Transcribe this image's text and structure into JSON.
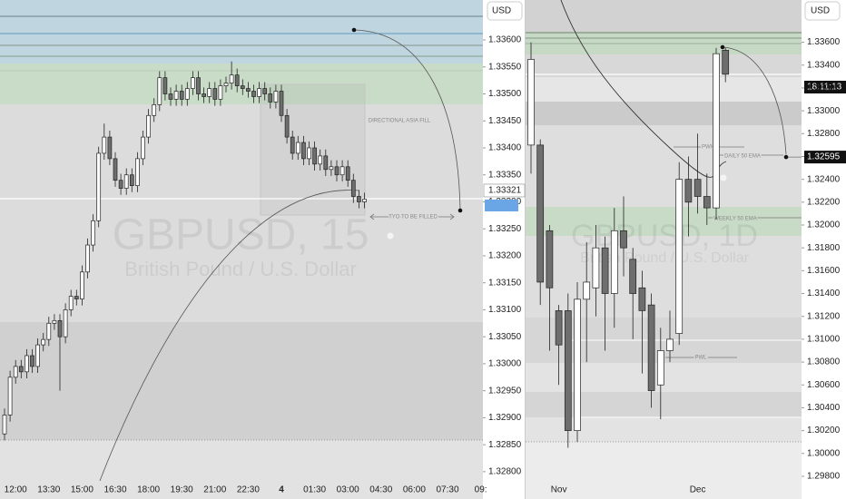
{
  "chart_data": [
    {
      "type": "candlestick",
      "currency": "USD",
      "title": "GBPUSD, 15",
      "subtitle": "British Pound / U.S. Dollar",
      "categories": [
        null,
        null,
        "12:00",
        null,
        null,
        null,
        null,
        null,
        "13:30",
        null,
        null,
        null,
        null,
        null,
        "15:00",
        null,
        null,
        null,
        null,
        null,
        "16:30",
        null,
        null,
        null,
        null,
        null,
        "18:00",
        null,
        null,
        null,
        null,
        null,
        "19:30",
        null,
        null,
        null,
        null,
        null,
        "21:00",
        null,
        null,
        null,
        null,
        null,
        "22:30",
        null,
        null,
        null,
        null,
        null,
        "4",
        null,
        null,
        null,
        null,
        null,
        "01:30",
        null,
        null,
        null,
        null,
        null,
        "03:00",
        null,
        null,
        null,
        null,
        null,
        "04:30",
        null,
        null,
        null,
        null,
        null,
        "06:00",
        null,
        null,
        null,
        null,
        null,
        "07:30",
        null,
        null,
        null,
        null,
        null,
        "09:"
      ],
      "open": [
        1.3287,
        1.32905,
        1.32975,
        1.32995,
        1.32985,
        1.33015,
        1.32995,
        1.33035,
        1.33045,
        1.33075,
        1.3308,
        1.3305,
        1.331,
        1.33125,
        1.3312,
        1.3317,
        1.3322,
        1.33265,
        1.3339,
        1.3342,
        1.3338,
        1.3334,
        1.33325,
        1.3335,
        1.3333,
        1.3338,
        1.3342,
        1.3346,
        1.3348,
        1.3353,
        1.335,
        1.3349,
        1.33505,
        1.3349,
        1.3351,
        1.3353,
        1.335,
        1.33495,
        1.3351,
        1.3349,
        1.33515,
        1.3352,
        1.33535,
        1.33515,
        1.3351,
        1.33505,
        1.33495,
        1.3351,
        1.335,
        1.33485,
        1.33505,
        1.3346,
        1.3342,
        1.3339,
        1.3341,
        1.3338,
        1.334,
        1.3337,
        1.33385,
        1.3336,
        1.33365,
        1.3335,
        1.33365,
        1.3334,
        1.3331,
        1.333,
        null,
        null,
        null,
        null,
        null,
        null,
        null,
        null,
        null,
        null,
        null,
        null,
        null,
        null,
        null,
        null,
        null,
        null,
        null,
        null,
        null
      ],
      "high": [
        1.32917,
        1.32987,
        1.33007,
        1.33007,
        1.33027,
        1.33027,
        1.33047,
        1.33057,
        1.33087,
        1.33092,
        1.33092,
        1.33112,
        1.33137,
        1.33137,
        1.33182,
        1.33232,
        1.33277,
        1.33402,
        1.33445,
        1.33432,
        1.33392,
        1.33352,
        1.33362,
        1.33362,
        1.33392,
        1.33432,
        1.33472,
        1.33492,
        1.33542,
        1.33542,
        1.33512,
        1.33517,
        1.33517,
        1.33522,
        1.33542,
        1.33542,
        1.33512,
        1.33522,
        1.33522,
        1.33527,
        1.33532,
        1.3356,
        1.33547,
        1.33527,
        1.33522,
        1.33517,
        1.33522,
        1.33522,
        1.33512,
        1.33517,
        1.33517,
        1.33472,
        1.33432,
        1.33422,
        1.33422,
        1.33412,
        1.33412,
        1.33397,
        1.33397,
        1.33377,
        1.33377,
        1.33377,
        1.33377,
        1.33352,
        1.33322,
        1.33317,
        null,
        null,
        null,
        null,
        null,
        null,
        null,
        null,
        null,
        null,
        null,
        null,
        null,
        null,
        null,
        null,
        null,
        null,
        null,
        null,
        null
      ],
      "low": [
        1.32858,
        1.32893,
        1.32963,
        1.32973,
        1.32973,
        1.32983,
        1.32983,
        1.33023,
        1.33033,
        1.33063,
        1.3295,
        1.33038,
        1.33088,
        1.33108,
        1.33108,
        1.33158,
        1.33208,
        1.33253,
        1.33378,
        1.33368,
        1.33328,
        1.33313,
        1.33313,
        1.33318,
        1.33318,
        1.33368,
        1.33408,
        1.33448,
        1.33468,
        1.33488,
        1.33478,
        1.33478,
        1.33478,
        1.33478,
        1.33498,
        1.33488,
        1.33483,
        1.33483,
        1.33478,
        1.33478,
        1.33503,
        1.33508,
        1.33503,
        1.33498,
        1.33493,
        1.33483,
        1.33483,
        1.33488,
        1.33473,
        1.33473,
        1.33448,
        1.33408,
        1.33378,
        1.33378,
        1.33368,
        1.33368,
        1.33358,
        1.33358,
        1.33348,
        1.33348,
        1.33338,
        1.33338,
        1.33328,
        1.33298,
        1.33288,
        1.33288,
        null,
        null,
        null,
        null,
        null,
        null,
        null,
        null,
        null,
        null,
        null,
        null,
        null,
        null,
        null,
        null,
        null,
        null,
        null,
        null,
        null
      ],
      "close": [
        1.32905,
        1.32975,
        1.32995,
        1.32985,
        1.33015,
        1.32995,
        1.33035,
        1.33045,
        1.33075,
        1.3308,
        1.3305,
        1.331,
        1.33125,
        1.3312,
        1.3317,
        1.3322,
        1.33265,
        1.3339,
        1.3342,
        1.3338,
        1.3334,
        1.33325,
        1.3335,
        1.3333,
        1.3338,
        1.3342,
        1.3346,
        1.3348,
        1.3353,
        1.335,
        1.3349,
        1.33505,
        1.3349,
        1.3351,
        1.3353,
        1.335,
        1.33495,
        1.3351,
        1.3349,
        1.33515,
        1.3352,
        1.33535,
        1.33515,
        1.3351,
        1.33505,
        1.33495,
        1.3351,
        1.335,
        1.33485,
        1.33505,
        1.3346,
        1.3342,
        1.3339,
        1.3341,
        1.3338,
        1.334,
        1.3337,
        1.33385,
        1.3336,
        1.33365,
        1.3335,
        1.33365,
        1.3334,
        1.3331,
        1.333,
        1.33305,
        null,
        null,
        null,
        null,
        null,
        null,
        null,
        null,
        null,
        null,
        null,
        null,
        null,
        null,
        null,
        null,
        null,
        null,
        null,
        null,
        null
      ],
      "up_color": "#ffffff",
      "down_color": "#6e6e6e",
      "ylim": [
        1.32783,
        1.33674
      ],
      "yticks": [
        {
          "value": 1.336,
          "label": "1.33600"
        },
        {
          "value": 1.3355,
          "label": "1.33550"
        },
        {
          "value": 1.335,
          "label": "1.33500"
        },
        {
          "value": 1.3345,
          "label": "1.33450"
        },
        {
          "value": 1.334,
          "label": "1.33400"
        },
        {
          "value": 1.3335,
          "label": "1.33350"
        },
        {
          "value": 1.333,
          "label": "1.33300"
        },
        {
          "value": 1.3325,
          "label": "1.33250"
        },
        {
          "value": 1.332,
          "label": "1.33200"
        },
        {
          "value": 1.3315,
          "label": "1.33150"
        },
        {
          "value": 1.331,
          "label": "1.33100"
        },
        {
          "value": 1.3305,
          "label": "1.33050"
        },
        {
          "value": 1.33,
          "label": "1.33000"
        },
        {
          "value": 1.3295,
          "label": "1.32950"
        },
        {
          "value": 1.329,
          "label": "1.32900"
        },
        {
          "value": 1.3285,
          "label": "1.32850"
        },
        {
          "value": 1.328,
          "label": "1.32800"
        }
      ],
      "last_price": 1.33321,
      "annotations": [
        "DIRECTIONAL ASIA FILL",
        "TYO TO BE FILLED"
      ]
    },
    {
      "type": "candlestick",
      "currency": "USD",
      "title": "GBPUSD, 1D",
      "subtitle": "British Pound / U.S. Dollar",
      "categories": [
        null,
        null,
        null,
        "Nov",
        null,
        null,
        null,
        null,
        null,
        null,
        null,
        null,
        null,
        null,
        null,
        null,
        null,
        null,
        "Dec",
        null,
        null,
        null,
        null,
        null,
        null,
        null,
        null,
        null,
        null,
        null
      ],
      "open": [
        1.327,
        1.327,
        1.3195,
        1.3125,
        1.3125,
        1.302,
        1.3135,
        1.3145,
        1.318,
        1.314,
        1.3195,
        1.317,
        1.3145,
        1.313,
        1.306,
        1.309,
        1.3105,
        1.324,
        1.324,
        1.3225,
        1.3215,
        1.3353,
        null,
        null,
        null,
        null,
        null,
        null,
        null,
        null
      ],
      "high": [
        1.336,
        1.3275,
        1.32,
        1.313,
        1.314,
        1.315,
        1.3185,
        1.32,
        1.319,
        1.3215,
        1.3225,
        1.318,
        1.316,
        1.314,
        1.311,
        1.3125,
        1.3255,
        1.326,
        1.328,
        1.3245,
        1.3355,
        1.3355,
        null,
        null,
        null,
        null,
        null,
        null,
        null,
        null
      ],
      "low": [
        1.3245,
        1.313,
        1.309,
        1.306,
        1.3005,
        1.301,
        1.308,
        1.312,
        1.309,
        1.311,
        1.3155,
        1.31,
        1.307,
        1.304,
        1.303,
        1.308,
        1.3095,
        1.319,
        1.321,
        1.32,
        1.3205,
        1.3325,
        null,
        null,
        null,
        null,
        null,
        null,
        null,
        null
      ],
      "close": [
        1.3345,
        1.315,
        1.3145,
        1.3095,
        1.302,
        1.3135,
        1.315,
        1.318,
        1.314,
        1.3195,
        1.318,
        1.314,
        1.3125,
        1.3055,
        1.309,
        1.31,
        1.324,
        1.322,
        1.3225,
        1.3215,
        1.335,
        1.3332,
        null,
        null,
        null,
        null,
        null,
        null,
        null,
        null
      ],
      "up_color": "#ffffff",
      "down_color": "#6e6e6e",
      "ylim": [
        1.2976,
        1.3397
      ],
      "yticks": [
        {
          "value": 1.336,
          "label": "1.33600"
        },
        {
          "value": 1.334,
          "label": "1.33400"
        },
        {
          "value": 1.332,
          "label": "1.33200"
        },
        {
          "value": 1.33,
          "label": "1.33000"
        },
        {
          "value": 1.328,
          "label": "1.32800"
        },
        {
          "value": 1.326,
          "label": "1.32600"
        },
        {
          "value": 1.324,
          "label": "1.32400"
        },
        {
          "value": 1.322,
          "label": "1.32200"
        },
        {
          "value": 1.32,
          "label": "1.32000"
        },
        {
          "value": 1.318,
          "label": "1.31800"
        },
        {
          "value": 1.316,
          "label": "1.31600"
        },
        {
          "value": 1.314,
          "label": "1.31400"
        },
        {
          "value": 1.312,
          "label": "1.31200"
        },
        {
          "value": 1.31,
          "label": "1.31000"
        },
        {
          "value": 1.308,
          "label": "1.30800"
        },
        {
          "value": 1.306,
          "label": "1.30600"
        },
        {
          "value": 1.304,
          "label": "1.30400"
        },
        {
          "value": 1.302,
          "label": "1.30200"
        },
        {
          "value": 1.3,
          "label": "1.30000"
        },
        {
          "value": 1.298,
          "label": "1.29800"
        }
      ],
      "marker_price": 1.32595,
      "countdown": "18:11:13",
      "annotations": [
        "PWH",
        "DAILY 50 EMA",
        "WEEKLY 50 EMA",
        "PWL"
      ]
    }
  ]
}
